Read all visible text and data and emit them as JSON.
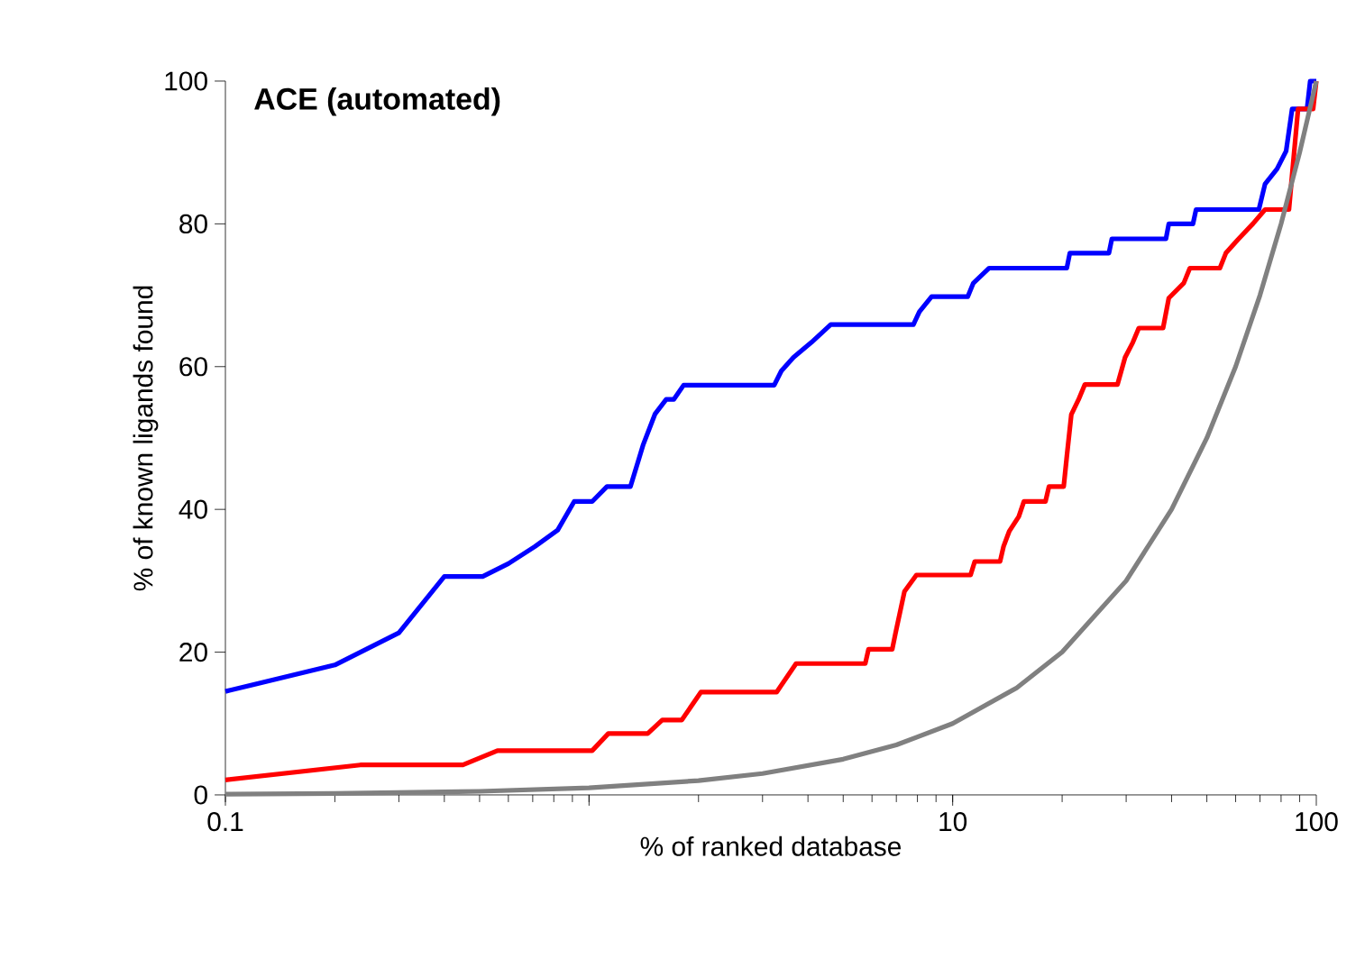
{
  "chart_data": {
    "type": "line",
    "title": "ACE (automated)",
    "xlabel": "% of ranked database",
    "ylabel": "% of known ligands found",
    "log": "x",
    "xlim": [
      0.1,
      100
    ],
    "ylim": [
      0,
      100
    ],
    "xticks": [
      0.1,
      {
        "value": 1,
        "label": null
      },
      10,
      100
    ],
    "yticks": [
      0,
      20,
      40,
      60,
      80,
      100
    ],
    "grid": false,
    "line_style": "solid",
    "series": [
      {
        "color": "#0000ff",
        "x": [
          0.1,
          0.2,
          0.3,
          0.4,
          0.51,
          0.6,
          0.71,
          0.82,
          0.91,
          1.02,
          1.12,
          1.3,
          1.41,
          1.52,
          1.63,
          1.71,
          1.82,
          3.23,
          3.38,
          3.65,
          4.09,
          4.62,
          7.8,
          8.1,
          8.75,
          11.0,
          11.4,
          12.6,
          20.6,
          21.0,
          26.9,
          27.4,
          38.6,
          39.3,
          45.8,
          46.7,
          69.5,
          72.3,
          78.0,
          82.6,
          85.8,
          94.3,
          96.2,
          100
        ],
        "values": [
          14.5,
          18.2,
          22.7,
          30.6,
          30.6,
          32.4,
          34.8,
          37.1,
          41.1,
          41.1,
          43.2,
          43.2,
          49.1,
          53.4,
          55.4,
          55.4,
          57.4,
          57.4,
          59.4,
          61.3,
          63.4,
          65.9,
          65.9,
          67.7,
          69.8,
          69.8,
          71.7,
          73.8,
          73.8,
          75.9,
          75.9,
          77.9,
          77.9,
          80.0,
          80.0,
          82.0,
          82.0,
          85.6,
          87.7,
          90.2,
          96.1,
          96.1,
          100,
          100
        ]
      },
      {
        "color": "#ff0000",
        "x": [
          0.1,
          0.235,
          0.45,
          0.56,
          1.02,
          1.13,
          1.45,
          1.59,
          1.8,
          2.03,
          3.28,
          3.71,
          5.75,
          5.87,
          6.82,
          6.96,
          7.37,
          7.95,
          11.2,
          11.5,
          13.5,
          13.8,
          14.3,
          15.2,
          15.7,
          18.0,
          18.4,
          20.2,
          20.6,
          21.2,
          22.2,
          23.1,
          28.4,
          29.8,
          31.3,
          32.5,
          37.9,
          39.3,
          43.2,
          44.9,
          54.3,
          56.4,
          60.9,
          66.9,
          72.3,
          84.1,
          89.1,
          98.0,
          100
        ],
        "values": [
          2.1,
          4.2,
          4.2,
          6.2,
          6.2,
          8.6,
          8.6,
          10.5,
          10.5,
          14.4,
          14.4,
          18.4,
          18.4,
          20.4,
          20.4,
          22.6,
          28.5,
          30.8,
          30.8,
          32.7,
          32.7,
          34.8,
          36.9,
          39.0,
          41.1,
          41.1,
          43.2,
          43.2,
          47.4,
          53.3,
          55.4,
          57.5,
          57.5,
          61.3,
          63.4,
          65.4,
          65.4,
          69.6,
          71.7,
          73.8,
          73.8,
          75.9,
          77.8,
          80.0,
          82.0,
          82.0,
          96.1,
          96.1,
          100
        ]
      },
      {
        "color": "#808080",
        "x": [
          0.1,
          0.2,
          0.5,
          1,
          2,
          3,
          5,
          7,
          10,
          15,
          20,
          30,
          40,
          50,
          60,
          70,
          80,
          90,
          100
        ],
        "values": [
          0.1,
          0.2,
          0.5,
          1,
          2,
          3,
          5,
          7,
          10,
          15,
          20,
          30,
          40,
          50,
          60,
          70,
          80,
          90,
          100
        ]
      }
    ]
  }
}
